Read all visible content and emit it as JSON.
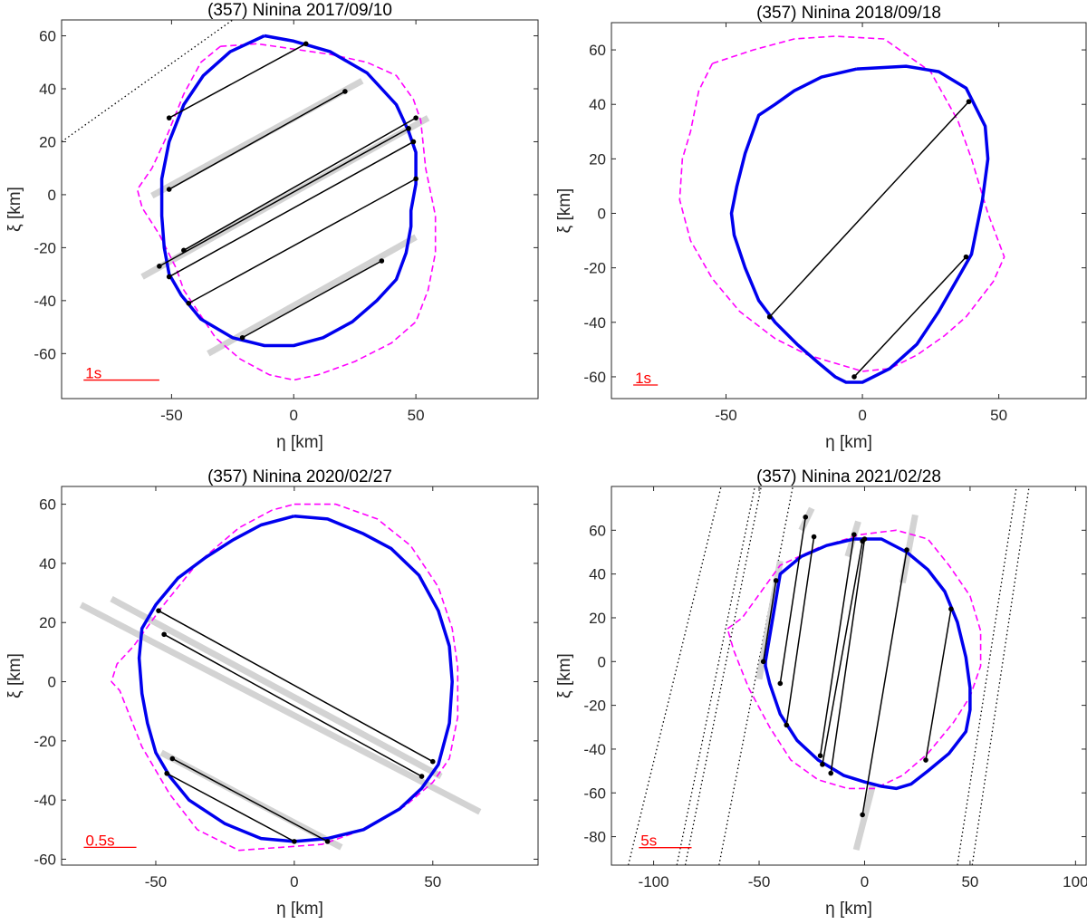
{
  "chart_data": [
    {
      "type": "line",
      "title": "(357) Ninina     2017/09/10",
      "xlabel": "η [km]",
      "ylabel": "ξ [km]",
      "xlim": [
        -95,
        100
      ],
      "ylim": [
        -77,
        66
      ],
      "xticks": [
        -50,
        0,
        50
      ],
      "xtick_labels": [
        "-50",
        "0",
        "50"
      ],
      "yticks": [
        -60,
        -40,
        -20,
        0,
        20,
        40,
        60
      ],
      "ytick_labels": [
        "-60",
        "-40",
        "-20",
        "0",
        "20",
        "40",
        "60"
      ],
      "grid": false,
      "scale_bar": {
        "label": "1s",
        "x": [
          -86,
          -55
        ],
        "y": -70,
        "color": "#ff0000"
      },
      "shape_model": {
        "color": "#0000ee",
        "x": [
          -12,
          0,
          15,
          30,
          42,
          47,
          50,
          50,
          48,
          48,
          46,
          42,
          34,
          24,
          12,
          0,
          -12,
          -25,
          -38,
          -46,
          -51,
          -53,
          -54,
          -54,
          -51,
          -45,
          -37,
          -26,
          -12
        ],
        "y": [
          60,
          58,
          54,
          46,
          34,
          24,
          16,
          4,
          -6,
          -12,
          -22,
          -32,
          -40,
          -48,
          -54,
          -57,
          -57,
          -54,
          -47,
          -38,
          -30,
          -20,
          -8,
          6,
          20,
          34,
          45,
          54,
          60
        ]
      },
      "comparison_model": {
        "color": "#ff00ff",
        "x": [
          -30,
          -15,
          0,
          15,
          30,
          42,
          49,
          52,
          54,
          58,
          58,
          55,
          50,
          40,
          25,
          10,
          0,
          -10,
          -22,
          -32,
          -45,
          -48,
          -55,
          -62,
          -64,
          -58,
          -52,
          -45,
          -38,
          -30
        ],
        "y": [
          56,
          57,
          55,
          53,
          50,
          45,
          36,
          28,
          10,
          -8,
          -22,
          -36,
          -48,
          -56,
          -63,
          -68,
          -70,
          -68,
          -62,
          -54,
          -36,
          -28,
          -15,
          -5,
          2,
          10,
          22,
          38,
          50,
          56
        ]
      },
      "chords": [
        {
          "x": [
            -51,
            5
          ],
          "y": [
            29,
            57
          ]
        },
        {
          "x": [
            -51,
            21
          ],
          "y": [
            2,
            39
          ]
        },
        {
          "x": [
            -45,
            50
          ],
          "y": [
            -21,
            29
          ]
        },
        {
          "x": [
            -55,
            47
          ],
          "y": [
            -27,
            25
          ]
        },
        {
          "x": [
            -51,
            49
          ],
          "y": [
            -31,
            20
          ]
        },
        {
          "x": [
            -43,
            50
          ],
          "y": [
            -41,
            6
          ]
        },
        {
          "x": [
            -21,
            36
          ],
          "y": [
            -54,
            -25
          ]
        }
      ],
      "uncertainty_bars": [
        {
          "x": [
            -58,
            28
          ],
          "y": [
            -0.4,
            43
          ]
        },
        {
          "x": [
            -62,
            55
          ],
          "y": [
            -31,
            29
          ]
        },
        {
          "x": [
            -35,
            50
          ],
          "y": [
            -60,
            -16
          ]
        }
      ],
      "negative_chords": [
        {
          "x": [
            -95,
            -25
          ],
          "y": [
            20,
            66
          ]
        }
      ]
    },
    {
      "type": "line",
      "title": "(357) Ninina     2018/09/18",
      "xlabel": "η [km]",
      "ylabel": "ξ [km]",
      "xlim": [
        -92,
        82
      ],
      "ylim": [
        -68,
        70
      ],
      "xticks": [
        -50,
        0,
        50
      ],
      "xtick_labels": [
        "-50",
        "0",
        "50"
      ],
      "yticks": [
        -60,
        -40,
        -20,
        0,
        20,
        40,
        60
      ],
      "ytick_labels": [
        "-60",
        "-40",
        "-20",
        "0",
        "20",
        "40",
        "60"
      ],
      "grid": false,
      "scale_bar": {
        "label": "1s",
        "x": [
          -84,
          -75
        ],
        "y": -63,
        "color": "#ff0000"
      },
      "shape_model": {
        "color": "#0000ee",
        "x": [
          -2,
          16,
          28,
          38,
          45,
          46,
          44,
          40,
          36,
          28,
          20,
          10,
          0,
          -6,
          -10,
          -16,
          -24,
          -32,
          -38,
          -43,
          -47,
          -48,
          -46,
          -43,
          -38,
          -32,
          -25,
          -15,
          -2
        ],
        "y": [
          53,
          54,
          52,
          46,
          32,
          20,
          5,
          -15,
          -22,
          -36,
          -48,
          -57,
          -62,
          -62,
          -60,
          -55,
          -48,
          -40,
          -32,
          -20,
          -8,
          0,
          10,
          22,
          36,
          40,
          45,
          50,
          53
        ]
      },
      "comparison_model": {
        "color": "#ff00ff",
        "x": [
          -55,
          -40,
          -25,
          -10,
          8,
          25,
          35,
          40,
          46,
          52,
          48,
          38,
          30,
          20,
          10,
          0,
          -10,
          -20,
          -32,
          -45,
          -55,
          -63,
          -67,
          -66,
          -63,
          -60,
          -55
        ],
        "y": [
          55,
          60,
          64,
          65,
          64,
          52,
          34,
          20,
          0,
          -16,
          -25,
          -38,
          -45,
          -52,
          -57,
          -58,
          -55,
          -52,
          -46,
          -36,
          -24,
          -10,
          5,
          20,
          30,
          45,
          55
        ]
      },
      "chords": [
        {
          "x": [
            -34,
            39
          ],
          "y": [
            -38,
            41
          ]
        },
        {
          "x": [
            -3,
            38
          ],
          "y": [
            -60,
            -16
          ]
        }
      ]
    },
    {
      "type": "line",
      "title": "(357) Ninina     2020/02/27",
      "xlabel": "η [km]",
      "ylabel": "ξ [km]",
      "xlim": [
        -84,
        88
      ],
      "ylim": [
        -62,
        66
      ],
      "xticks": [
        -50,
        0,
        50
      ],
      "xtick_labels": [
        "-50",
        "0",
        "50"
      ],
      "yticks": [
        -60,
        -40,
        -20,
        0,
        20,
        40,
        60
      ],
      "ytick_labels": [
        "-60",
        "-40",
        "-20",
        "0",
        "20",
        "40",
        "60"
      ],
      "grid": false,
      "scale_bar": {
        "label": "0.5s",
        "x": [
          -76,
          -57
        ],
        "y": -56,
        "color": "#ff0000"
      },
      "shape_model": {
        "color": "#0000ee",
        "x": [
          0,
          12,
          25,
          35,
          45,
          52,
          56,
          57,
          56,
          52,
          46,
          38,
          25,
          12,
          0,
          -12,
          -25,
          -38,
          -45,
          -50,
          -53,
          -55,
          -56,
          -55,
          -50,
          -42,
          -32,
          -22,
          -12,
          0
        ],
        "y": [
          56,
          55,
          50,
          45,
          36,
          24,
          12,
          0,
          -14,
          -28,
          -36,
          -43,
          -50,
          -53,
          -54,
          -53,
          -48,
          -40,
          -32,
          -24,
          -14,
          -4,
          8,
          18,
          26,
          35,
          42,
          48,
          53,
          56
        ]
      },
      "comparison_model": {
        "color": "#ff00ff",
        "x": [
          0,
          15,
          30,
          42,
          52,
          57,
          59,
          59,
          56,
          50,
          40,
          25,
          10,
          -5,
          -20,
          -35,
          -45,
          -55,
          -63,
          -66,
          -64,
          -58,
          -48,
          -35,
          -20,
          -8,
          0
        ],
        "y": [
          60,
          60,
          55,
          46,
          32,
          18,
          5,
          -12,
          -26,
          -34,
          -42,
          -50,
          -55,
          -56,
          -57,
          -50,
          -38,
          -22,
          -3,
          0,
          6,
          12,
          25,
          40,
          52,
          58,
          60
        ]
      },
      "chords": [
        {
          "x": [
            -49,
            50
          ],
          "y": [
            24,
            -27
          ]
        },
        {
          "x": [
            -47,
            46
          ],
          "y": [
            16,
            -32
          ]
        },
        {
          "x": [
            -44,
            12
          ],
          "y": [
            -26,
            -54
          ]
        },
        {
          "x": [
            -46,
            0
          ],
          "y": [
            -31,
            -54
          ]
        }
      ],
      "uncertainty_bars": [
        {
          "x": [
            -77,
            67
          ],
          "y": [
            26,
            -44
          ]
        },
        {
          "x": [
            -66,
            53
          ],
          "y": [
            28,
            -32
          ]
        },
        {
          "x": [
            -48,
            17
          ],
          "y": [
            -24,
            -56
          ]
        }
      ]
    },
    {
      "type": "line",
      "title": "(357) Ninina     2021/02/28",
      "xlabel": "η [km]",
      "ylabel": "ξ [km]",
      "xlim": [
        -120,
        105
      ],
      "ylim": [
        -93,
        80
      ],
      "xticks": [
        -100,
        -50,
        0,
        50,
        100
      ],
      "xtick_labels": [
        "-100",
        "-50",
        "0",
        "50",
        "100"
      ],
      "yticks": [
        -80,
        -60,
        -40,
        -20,
        0,
        20,
        40,
        60
      ],
      "ytick_labels": [
        "-80",
        "-60",
        "-40",
        "-20",
        "0",
        "20",
        "40",
        "60"
      ],
      "grid": false,
      "scale_bar": {
        "label": "5s",
        "x": [
          -107,
          -82
        ],
        "y": -85,
        "color": "#ff0000"
      },
      "shape_model": {
        "color": "#0000ee",
        "x": [
          -47,
          -40,
          -30,
          -18,
          -5,
          8,
          20,
          30,
          38,
          44,
          48,
          50,
          50,
          48,
          40,
          30,
          22,
          15,
          8,
          0,
          -10,
          -22,
          -32,
          -40,
          -45,
          -47,
          -47
        ],
        "y": [
          0,
          40,
          48,
          53,
          56,
          56,
          50,
          42,
          32,
          18,
          2,
          -12,
          -22,
          -32,
          -42,
          -50,
          -56,
          -58,
          -57,
          -55,
          -52,
          -45,
          -36,
          -24,
          -10,
          -2,
          0
        ]
      },
      "comparison_model": {
        "color": "#ff00ff",
        "x": [
          -65,
          -58,
          -40,
          -22,
          -2,
          15,
          30,
          40,
          50,
          55,
          55,
          50,
          42,
          30,
          18,
          5,
          -8,
          -22,
          -35,
          -45,
          -55,
          -62,
          -65
        ],
        "y": [
          15,
          20,
          44,
          52,
          58,
          60,
          56,
          44,
          30,
          14,
          -2,
          -16,
          -28,
          -42,
          -52,
          -58,
          -58,
          -54,
          -45,
          -30,
          -12,
          5,
          15
        ]
      },
      "chords": [
        {
          "x": [
            -48,
            -42
          ],
          "y": [
            0,
            37
          ]
        },
        {
          "x": [
            -40,
            -28
          ],
          "y": [
            -10,
            66
          ]
        },
        {
          "x": [
            -37,
            -24
          ],
          "y": [
            -29,
            57
          ]
        },
        {
          "x": [
            -21,
            -5
          ],
          "y": [
            -43,
            58
          ]
        },
        {
          "x": [
            -20,
            -1
          ],
          "y": [
            -47,
            55
          ]
        },
        {
          "x": [
            -16,
            0
          ],
          "y": [
            -51,
            56
          ]
        },
        {
          "x": [
            -1,
            20
          ],
          "y": [
            -70,
            51
          ]
        },
        {
          "x": [
            29,
            41
          ],
          "y": [
            -45,
            24
          ]
        }
      ],
      "uncertainty_bars": [
        {
          "x": [
            -50,
            -40
          ],
          "y": [
            -8,
            46
          ]
        },
        {
          "x": [
            -30,
            -25
          ],
          "y": [
            60,
            70
          ]
        },
        {
          "x": [
            -8,
            -3
          ],
          "y": [
            48,
            64
          ]
        },
        {
          "x": [
            -4,
            4
          ],
          "y": [
            -86,
            -56
          ]
        },
        {
          "x": [
            18,
            24
          ],
          "y": [
            36,
            67
          ]
        }
      ],
      "negative_chords": [
        {
          "x": [
            -112,
            -68
          ],
          "y": [
            -93,
            80
          ]
        },
        {
          "x": [
            -89,
            -52
          ],
          "y": [
            -93,
            80
          ]
        },
        {
          "x": [
            -85,
            -49
          ],
          "y": [
            -93,
            80
          ]
        },
        {
          "x": [
            -69,
            -34
          ],
          "y": [
            -93,
            80
          ]
        },
        {
          "x": [
            44,
            72
          ],
          "y": [
            -93,
            80
          ]
        },
        {
          "x": [
            51,
            78
          ],
          "y": [
            -93,
            80
          ]
        }
      ]
    }
  ]
}
